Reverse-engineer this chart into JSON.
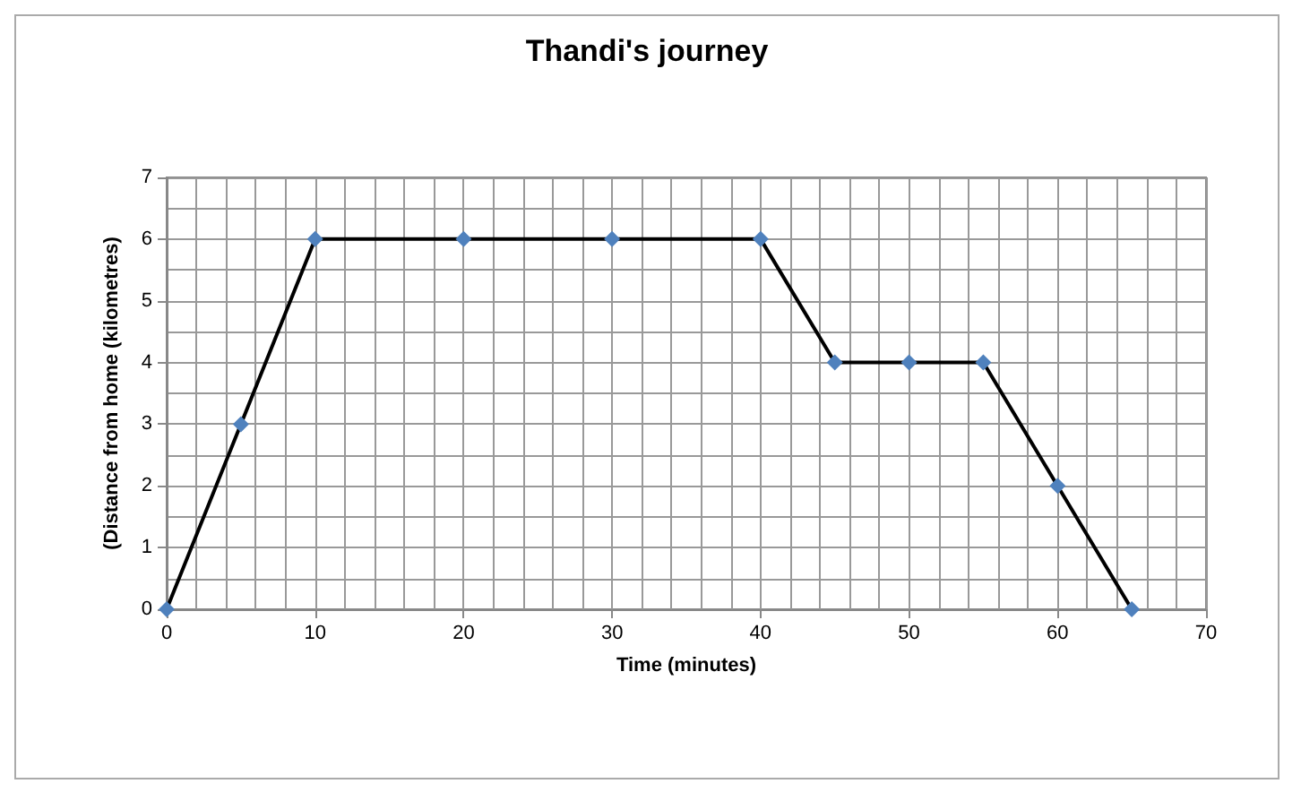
{
  "chart_data": {
    "type": "line",
    "title": "Thandi's journey",
    "xlabel": "Time (minutes)",
    "ylabel": "(Distance from home (kilometres)",
    "x": [
      0,
      5,
      10,
      20,
      30,
      40,
      45,
      50,
      55,
      60,
      65
    ],
    "series": [
      {
        "color": "#4f81bd",
        "values": [
          0,
          3,
          6,
          6,
          6,
          6,
          4,
          4,
          4,
          2,
          0
        ]
      }
    ],
    "xlim": [
      0,
      70
    ],
    "xticks": [
      0,
      10,
      20,
      30,
      40,
      50,
      60,
      70
    ],
    "ylim": [
      0,
      7
    ],
    "yticks": [
      0,
      1,
      2,
      3,
      4,
      5,
      6,
      7
    ],
    "grid": true,
    "marker": "diamond",
    "line_style": "solid"
  }
}
